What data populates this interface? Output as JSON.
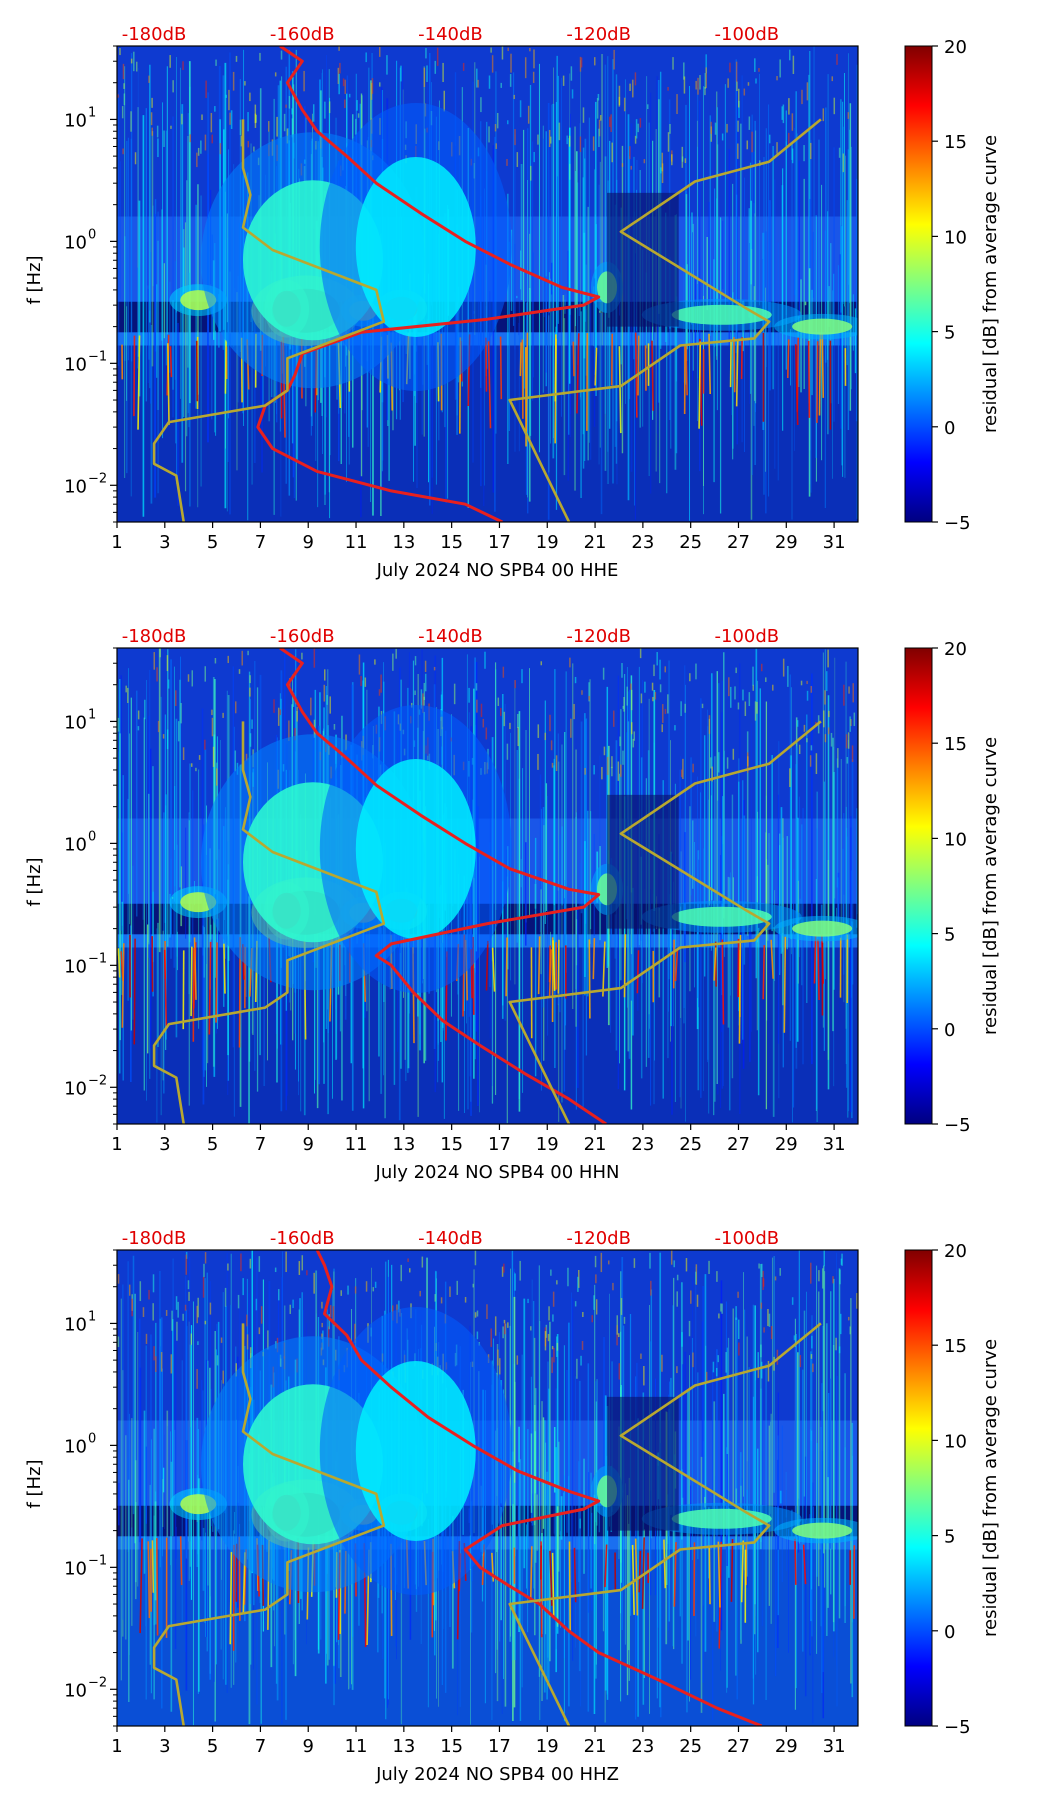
{
  "chart_data": [
    {
      "type": "heatmap",
      "title": "",
      "xlabel": "July 2024 NO SPB4 00 HHE",
      "ylabel": "f [Hz]",
      "x_ticks": [
        "1",
        "3",
        "5",
        "7",
        "9",
        "11",
        "13",
        "15",
        "17",
        "19",
        "21",
        "23",
        "25",
        "27",
        "29",
        "31"
      ],
      "xlim": [
        1,
        32
      ],
      "y_ticks": [
        {
          "value": 10,
          "label": "10^1",
          "base": "10",
          "exp": "1"
        },
        {
          "value": 1,
          "label": "10^0",
          "base": "10",
          "exp": "0"
        },
        {
          "value": 0.1,
          "label": "10^-1",
          "base": "10",
          "exp": "−1"
        },
        {
          "value": 0.01,
          "label": "10^-2",
          "base": "10",
          "exp": "−2"
        }
      ],
      "ylim": [
        0.005,
        40
      ],
      "yscale": "log",
      "top_ticks": [
        "-180dB",
        "-160dB",
        "-140dB",
        "-120dB",
        "-100dB"
      ],
      "top_axis_db_range": [
        -185,
        -85
      ],
      "colorbar": {
        "label": "residual [dB] from average curve",
        "ticks": [
          "20",
          "15",
          "10",
          "5",
          "0",
          "−5"
        ],
        "range": [
          -5,
          20
        ]
      },
      "series": [
        {
          "name": "average PSD (red)",
          "color": "#e8201e",
          "axis": "dB",
          "points": [
            [
              -163,
              40
            ],
            [
              -160,
              30
            ],
            [
              -162,
              20
            ],
            [
              -160,
              12
            ],
            [
              -158,
              8
            ],
            [
              -154,
              5
            ],
            [
              -150,
              3
            ],
            [
              -144,
              1.7
            ],
            [
              -138,
              1.0
            ],
            [
              -132,
              0.65
            ],
            [
              -125,
              0.42
            ],
            [
              -120,
              0.35
            ],
            [
              -122,
              0.3
            ],
            [
              -135,
              0.23
            ],
            [
              -152,
              0.18
            ],
            [
              -160,
              0.12
            ],
            [
              -161,
              0.08
            ],
            [
              -162,
              0.06
            ],
            [
              -165,
              0.045
            ],
            [
              -166,
              0.03
            ],
            [
              -164,
              0.02
            ],
            [
              -158,
              0.013
            ],
            [
              -148,
              0.009
            ],
            [
              -138,
              0.007
            ],
            [
              -133,
              0.005
            ]
          ]
        },
        {
          "name": "low noise model (olive)",
          "color": "#b8a830",
          "axis": "dB",
          "points": [
            [
              -168,
              10
            ],
            [
              -168,
              4
            ],
            [
              -167,
              2.4
            ],
            [
              -168,
              1.3
            ],
            [
              -164,
              0.85
            ],
            [
              -150,
              0.4
            ],
            [
              -149,
              0.22
            ],
            [
              -162,
              0.11
            ],
            [
              -162,
              0.06
            ],
            [
              -165,
              0.045
            ],
            [
              -178,
              0.033
            ],
            [
              -180,
              0.022
            ],
            [
              -180,
              0.015
            ],
            [
              -177,
              0.012
            ],
            [
              -176,
              0.005
            ]
          ]
        },
        {
          "name": "high noise model (olive)",
          "color": "#b8a830",
          "axis": "dB",
          "points": [
            [
              -90,
              10
            ],
            [
              -97,
              4.5
            ],
            [
              -107,
              3.1
            ],
            [
              -117,
              1.2
            ],
            [
              -100,
              0.28
            ],
            [
              -97,
              0.22
            ],
            [
              -99,
              0.16
            ],
            [
              -109,
              0.14
            ],
            [
              -117,
              0.065
            ],
            [
              -132,
              0.05
            ],
            [
              -124,
              0.005
            ]
          ]
        }
      ]
    },
    {
      "type": "heatmap",
      "title": "",
      "xlabel": "July 2024 NO SPB4 00 HHN",
      "ylabel": "f [Hz]",
      "x_ticks": [
        "1",
        "3",
        "5",
        "7",
        "9",
        "11",
        "13",
        "15",
        "17",
        "19",
        "21",
        "23",
        "25",
        "27",
        "29",
        "31"
      ],
      "xlim": [
        1,
        32
      ],
      "y_ticks": [
        {
          "value": 10,
          "label": "10^1",
          "base": "10",
          "exp": "1"
        },
        {
          "value": 1,
          "label": "10^0",
          "base": "10",
          "exp": "0"
        },
        {
          "value": 0.1,
          "label": "10^-1",
          "base": "10",
          "exp": "−1"
        },
        {
          "value": 0.01,
          "label": "10^-2",
          "base": "10",
          "exp": "−2"
        }
      ],
      "ylim": [
        0.005,
        40
      ],
      "yscale": "log",
      "top_ticks": [
        "-180dB",
        "-160dB",
        "-140dB",
        "-120dB",
        "-100dB"
      ],
      "top_axis_db_range": [
        -185,
        -85
      ],
      "colorbar": {
        "label": "residual [dB] from average curve",
        "ticks": [
          "20",
          "15",
          "10",
          "5",
          "0",
          "−5"
        ],
        "range": [
          -5,
          20
        ]
      },
      "series": [
        {
          "name": "average PSD (red)",
          "color": "#e8201e",
          "axis": "dB",
          "points": [
            [
              -163,
              40
            ],
            [
              -160,
              30
            ],
            [
              -162,
              20
            ],
            [
              -160,
              12
            ],
            [
              -158,
              8
            ],
            [
              -154,
              5
            ],
            [
              -150,
              3
            ],
            [
              -144,
              1.7
            ],
            [
              -138,
              1.0
            ],
            [
              -132,
              0.62
            ],
            [
              -124,
              0.42
            ],
            [
              -120,
              0.38
            ],
            [
              -122,
              0.3
            ],
            [
              -135,
              0.22
            ],
            [
              -148,
              0.15
            ],
            [
              -150,
              0.12
            ],
            [
              -148,
              0.1
            ],
            [
              -145,
              0.06
            ],
            [
              -141,
              0.035
            ],
            [
              -136,
              0.022
            ],
            [
              -130,
              0.013
            ],
            [
              -124,
              0.008
            ],
            [
              -119,
              0.005
            ]
          ]
        },
        {
          "name": "low noise model (olive)",
          "color": "#b8a830",
          "axis": "dB",
          "points": [
            [
              -168,
              10
            ],
            [
              -168,
              4
            ],
            [
              -167,
              2.4
            ],
            [
              -168,
              1.3
            ],
            [
              -164,
              0.85
            ],
            [
              -150,
              0.4
            ],
            [
              -149,
              0.22
            ],
            [
              -162,
              0.11
            ],
            [
              -162,
              0.06
            ],
            [
              -165,
              0.045
            ],
            [
              -178,
              0.033
            ],
            [
              -180,
              0.022
            ],
            [
              -180,
              0.015
            ],
            [
              -177,
              0.012
            ],
            [
              -176,
              0.005
            ]
          ]
        },
        {
          "name": "high noise model (olive)",
          "color": "#b8a830",
          "axis": "dB",
          "points": [
            [
              -90,
              10
            ],
            [
              -97,
              4.5
            ],
            [
              -107,
              3.1
            ],
            [
              -117,
              1.2
            ],
            [
              -100,
              0.28
            ],
            [
              -97,
              0.22
            ],
            [
              -99,
              0.16
            ],
            [
              -109,
              0.14
            ],
            [
              -117,
              0.065
            ],
            [
              -132,
              0.05
            ],
            [
              -124,
              0.005
            ]
          ]
        }
      ]
    },
    {
      "type": "heatmap",
      "title": "",
      "xlabel": "July 2024 NO SPB4 00 HHZ",
      "ylabel": "f [Hz]",
      "x_ticks": [
        "1",
        "3",
        "5",
        "7",
        "9",
        "11",
        "13",
        "15",
        "17",
        "19",
        "21",
        "23",
        "25",
        "27",
        "29",
        "31"
      ],
      "xlim": [
        1,
        32
      ],
      "y_ticks": [
        {
          "value": 10,
          "label": "10^1",
          "base": "10",
          "exp": "1"
        },
        {
          "value": 1,
          "label": "10^0",
          "base": "10",
          "exp": "0"
        },
        {
          "value": 0.1,
          "label": "10^-1",
          "base": "10",
          "exp": "−1"
        },
        {
          "value": 0.01,
          "label": "10^-2",
          "base": "10",
          "exp": "−2"
        }
      ],
      "ylim": [
        0.005,
        40
      ],
      "yscale": "log",
      "top_ticks": [
        "-180dB",
        "-160dB",
        "-140dB",
        "-120dB",
        "-100dB"
      ],
      "top_axis_db_range": [
        -185,
        -85
      ],
      "colorbar": {
        "label": "residual [dB] from average curve",
        "ticks": [
          "20",
          "15",
          "10",
          "5",
          "0",
          "−5"
        ],
        "range": [
          -5,
          20
        ]
      },
      "series": [
        {
          "name": "average PSD (red)",
          "color": "#e8201e",
          "axis": "dB",
          "points": [
            [
              -158,
              40
            ],
            [
              -157,
              30
            ],
            [
              -156,
              20
            ],
            [
              -157,
              12
            ],
            [
              -154,
              8
            ],
            [
              -152,
              5
            ],
            [
              -148,
              3
            ],
            [
              -143,
              1.7
            ],
            [
              -137,
              1.0
            ],
            [
              -131,
              0.62
            ],
            [
              -124,
              0.42
            ],
            [
              -120,
              0.35
            ],
            [
              -122,
              0.3
            ],
            [
              -133,
              0.22
            ],
            [
              -138,
              0.14
            ],
            [
              -136,
              0.1
            ],
            [
              -132,
              0.07
            ],
            [
              -128,
              0.05
            ],
            [
              -124,
              0.03
            ],
            [
              -120,
              0.02
            ],
            [
              -112,
              0.012
            ],
            [
              -104,
              0.007
            ],
            [
              -98,
              0.005
            ]
          ]
        },
        {
          "name": "low noise model (olive)",
          "color": "#b8a830",
          "axis": "dB",
          "points": [
            [
              -168,
              10
            ],
            [
              -168,
              4
            ],
            [
              -167,
              2.4
            ],
            [
              -168,
              1.3
            ],
            [
              -164,
              0.85
            ],
            [
              -150,
              0.4
            ],
            [
              -149,
              0.22
            ],
            [
              -162,
              0.11
            ],
            [
              -162,
              0.06
            ],
            [
              -165,
              0.045
            ],
            [
              -178,
              0.033
            ],
            [
              -180,
              0.022
            ],
            [
              -180,
              0.015
            ],
            [
              -177,
              0.012
            ],
            [
              -176,
              0.005
            ]
          ]
        },
        {
          "name": "high noise model (olive)",
          "color": "#b8a830",
          "axis": "dB",
          "points": [
            [
              -90,
              10
            ],
            [
              -97,
              4.5
            ],
            [
              -107,
              3.1
            ],
            [
              -117,
              1.2
            ],
            [
              -100,
              0.28
            ],
            [
              -97,
              0.22
            ],
            [
              -99,
              0.16
            ],
            [
              -109,
              0.14
            ],
            [
              -117,
              0.065
            ],
            [
              -132,
              0.05
            ],
            [
              -124,
              0.005
            ]
          ]
        }
      ]
    }
  ]
}
